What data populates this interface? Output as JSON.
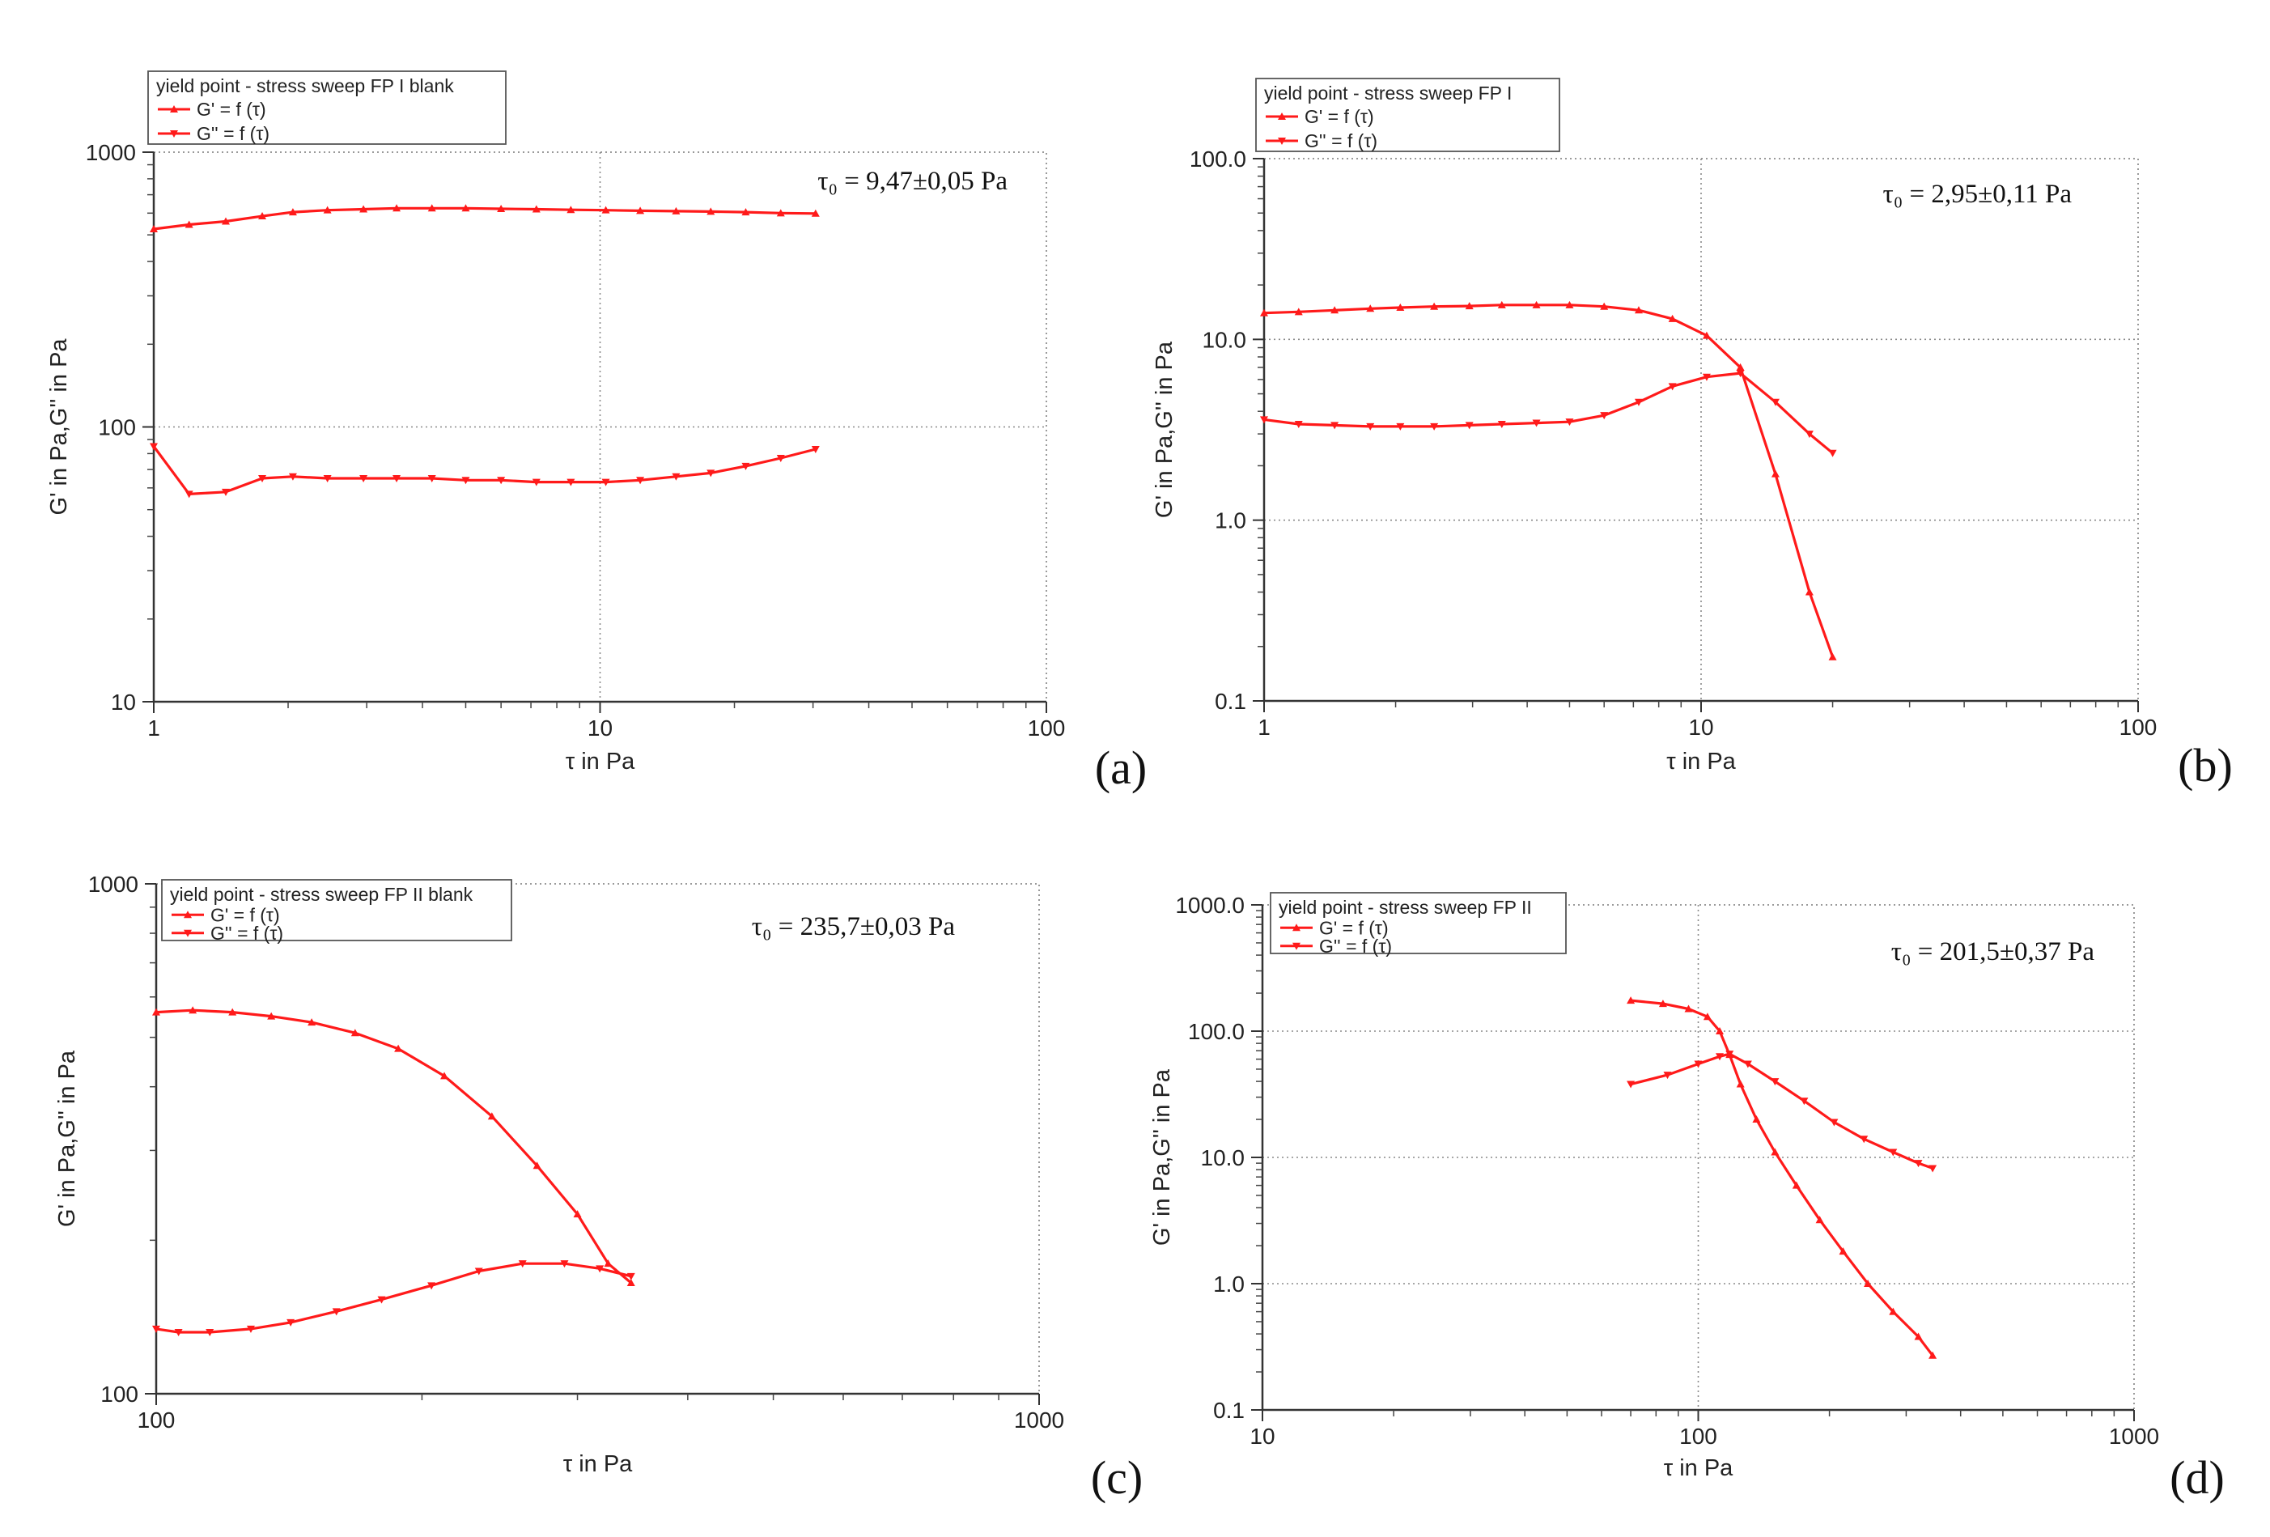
{
  "chart_data": [
    {
      "type": "line",
      "panel_label": "(a)",
      "legend_title": "yield point - stress sweep FP I blank",
      "legend": [
        "G' = f (τ)",
        "G'' = f (τ)"
      ],
      "annotation": "τ₀ = 9,47±0,05 Pa",
      "xlabel": "τ in Pa",
      "ylabel": "G' in Pa,G'' in Pa",
      "xscale": "log",
      "yscale": "log",
      "xlim": [
        1,
        100
      ],
      "ylim": [
        10,
        1000
      ],
      "xticks": [
        "1",
        "10",
        "100"
      ],
      "yticks": [
        "10",
        "100",
        "1000"
      ],
      "series": [
        {
          "name": "G' = f (τ)",
          "x": [
            1.0,
            1.2,
            1.45,
            1.75,
            2.05,
            2.45,
            2.95,
            3.5,
            4.2,
            5.0,
            6.0,
            7.2,
            8.6,
            10.3,
            12.3,
            14.8,
            17.7,
            21.2,
            25.4,
            30.4
          ],
          "y": [
            525,
            545,
            560,
            585,
            605,
            615,
            620,
            625,
            625,
            625,
            622,
            620,
            617,
            615,
            612,
            610,
            608,
            605,
            600,
            598
          ]
        },
        {
          "name": "G'' = f (τ)",
          "x": [
            1.0,
            1.2,
            1.45,
            1.75,
            2.05,
            2.45,
            2.95,
            3.5,
            4.2,
            5.0,
            6.0,
            7.2,
            8.6,
            10.3,
            12.3,
            14.8,
            17.7,
            21.2,
            25.4,
            30.4
          ],
          "y": [
            85,
            57,
            58,
            65,
            66,
            65,
            65,
            65,
            65,
            64,
            64,
            63,
            63,
            63,
            64,
            66,
            68,
            72,
            77,
            83
          ]
        }
      ]
    },
    {
      "type": "line",
      "panel_label": "(b)",
      "legend_title": "yield point - stress sweep FP I",
      "legend": [
        "G' = f (τ)",
        "G'' = f (τ)"
      ],
      "annotation": "τ₀ = 2,95±0,11 Pa",
      "xlabel": "τ in Pa",
      "ylabel": "G' in Pa,G'' in Pa",
      "xscale": "log",
      "yscale": "log",
      "xlim": [
        1,
        100
      ],
      "ylim": [
        0.1,
        100
      ],
      "xticks": [
        "1",
        "10",
        "100"
      ],
      "yticks": [
        "0.1",
        "1.0",
        "10.0",
        "100.0"
      ],
      "series": [
        {
          "name": "G' = f (τ)",
          "x": [
            1.0,
            1.2,
            1.45,
            1.75,
            2.05,
            2.45,
            2.95,
            3.5,
            4.2,
            5.0,
            6.0,
            7.2,
            8.6,
            10.3,
            12.3,
            14.8,
            17.7,
            20.0
          ],
          "y": [
            14,
            14.2,
            14.5,
            14.8,
            15,
            15.2,
            15.3,
            15.5,
            15.5,
            15.5,
            15.2,
            14.5,
            13,
            10.5,
            7.0,
            1.8,
            0.4,
            0.175
          ]
        },
        {
          "name": "G'' = f (τ)",
          "x": [
            1.0,
            1.2,
            1.45,
            1.75,
            2.05,
            2.45,
            2.95,
            3.5,
            4.2,
            5.0,
            6.0,
            7.2,
            8.6,
            10.3,
            12.3,
            14.8,
            17.7,
            20.0
          ],
          "y": [
            3.6,
            3.4,
            3.35,
            3.3,
            3.3,
            3.3,
            3.35,
            3.4,
            3.45,
            3.5,
            3.8,
            4.5,
            5.5,
            6.2,
            6.5,
            4.5,
            3.0,
            2.35
          ]
        }
      ]
    },
    {
      "type": "line",
      "panel_label": "(c)",
      "legend_title": "yield point - stress sweep FP II blank",
      "legend": [
        "G' = f (τ)",
        "G'' = f (τ)"
      ],
      "annotation": "τ₀ = 235,7±0,03 Pa",
      "xlabel": "τ in Pa",
      "ylabel": "G' in Pa,G'' in Pa",
      "xscale": "log",
      "yscale": "log",
      "xlim": [
        100,
        1000
      ],
      "ylim": [
        100,
        1000
      ],
      "xticks": [
        "100",
        "1000"
      ],
      "yticks": [
        "100",
        "1000"
      ],
      "series": [
        {
          "name": "G' = f (τ)",
          "x": [
            100,
            110,
            122,
            135,
            150,
            168,
            188,
            212,
            240,
            270,
            300,
            325,
            345
          ],
          "y": [
            560,
            565,
            560,
            550,
            535,
            510,
            475,
            420,
            350,
            280,
            225,
            180,
            165
          ]
        },
        {
          "name": "G'' = f (τ)",
          "x": [
            100,
            106,
            115,
            128,
            142,
            160,
            180,
            205,
            232,
            260,
            290,
            318,
            345
          ],
          "y": [
            134,
            132,
            132,
            134,
            138,
            145,
            153,
            163,
            174,
            180,
            180,
            176,
            170
          ]
        }
      ]
    },
    {
      "type": "line",
      "panel_label": "(d)",
      "legend_title": "yield point - stress sweep FP II",
      "legend": [
        "G' = f (τ)",
        "G'' = f (τ)"
      ],
      "annotation": "τ₀ = 201,5±0,37 Pa",
      "xlabel": "τ in Pa",
      "ylabel": "G' in Pa,G'' in Pa",
      "xscale": "log",
      "yscale": "log",
      "xlim": [
        10,
        1000
      ],
      "ylim": [
        0.1,
        1000
      ],
      "xticks": [
        "10",
        "100",
        "1000"
      ],
      "yticks": [
        "0.1",
        "1.0",
        "10.0",
        "100.0",
        "1000.0"
      ],
      "series": [
        {
          "name": "G' = f (τ)",
          "x": [
            70,
            83,
            95,
            105,
            112,
            118,
            125,
            136,
            150,
            168,
            190,
            215,
            245,
            280,
            320,
            345
          ],
          "y": [
            175,
            165,
            150,
            130,
            100,
            65,
            38,
            20,
            11,
            6,
            3.2,
            1.8,
            1.0,
            0.6,
            0.38,
            0.27
          ]
        },
        {
          "name": "G'' = f (τ)",
          "x": [
            70,
            85,
            100,
            112,
            118,
            130,
            150,
            175,
            205,
            240,
            280,
            320,
            345
          ],
          "y": [
            38,
            45,
            55,
            63,
            66,
            55,
            40,
            28,
            19,
            14,
            11,
            9,
            8.2
          ]
        }
      ]
    }
  ]
}
